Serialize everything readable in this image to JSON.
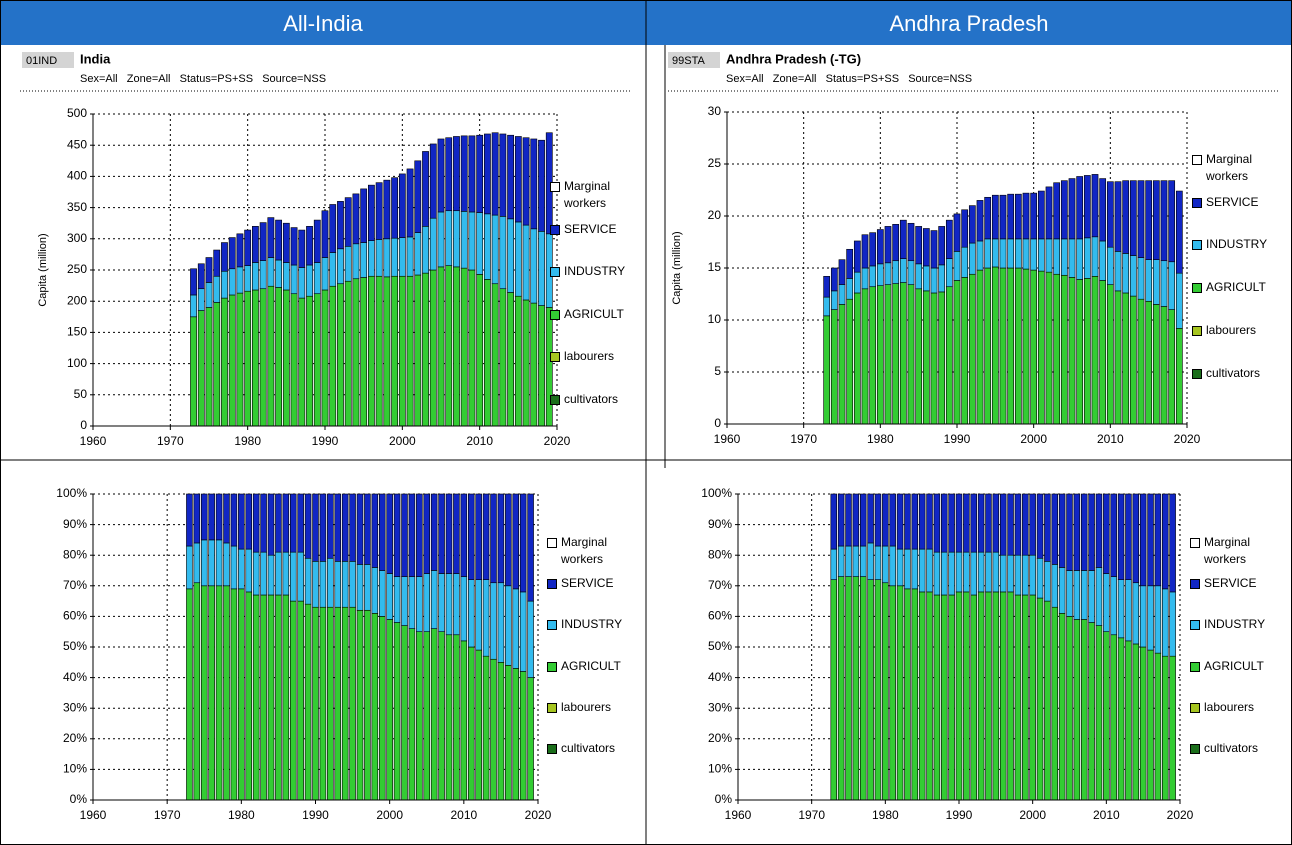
{
  "header": {
    "left": "All-India",
    "right": "Andhra Pradesh"
  },
  "chart_data": [
    {
      "type": "bar",
      "stacked": true,
      "code": "01IND",
      "title": "India",
      "subtitle": "Sex=All   Zone=All   Status=PS+SS   Source=NSS",
      "y_label": "Capita (million)",
      "x": [
        1973,
        1974,
        1975,
        1976,
        1977,
        1978,
        1979,
        1980,
        1981,
        1982,
        1983,
        1984,
        1985,
        1986,
        1987,
        1988,
        1989,
        1990,
        1991,
        1992,
        1993,
        1994,
        1995,
        1996,
        1997,
        1998,
        1999,
        2000,
        2001,
        2002,
        2003,
        2004,
        2005,
        2006,
        2007,
        2008,
        2009,
        2010,
        2011,
        2012,
        2013,
        2014,
        2015,
        2016,
        2017,
        2018,
        2019
      ],
      "xlim": [
        1960,
        2020
      ],
      "xticks": [
        1960,
        1970,
        1980,
        1990,
        2000,
        2010,
        2020
      ],
      "ylim": [
        0,
        500
      ],
      "yticks": [
        0,
        50,
        100,
        150,
        200,
        250,
        300,
        350,
        400,
        450,
        500
      ],
      "grid": true,
      "series": [
        {
          "name": "cultivators",
          "color": "#1b6e1b"
        },
        {
          "name": "labourers",
          "color": "#a6c520"
        },
        {
          "name": "AGRICULT",
          "color": "#33cc33",
          "values": [
            175,
            185,
            190,
            198,
            205,
            210,
            213,
            216,
            218,
            220,
            224,
            222,
            218,
            212,
            205,
            208,
            212,
            218,
            224,
            228,
            232,
            236,
            238,
            240,
            240,
            239,
            240,
            240,
            240,
            242,
            245,
            250,
            255,
            257,
            255,
            253,
            250,
            243,
            235,
            228,
            220,
            214,
            208,
            202,
            197,
            193,
            190
          ]
        },
        {
          "name": "INDUSTRY",
          "color": "#33bbee",
          "values": [
            35,
            35,
            40,
            42,
            43,
            42,
            42,
            41,
            44,
            45,
            46,
            44,
            44,
            46,
            49,
            50,
            50,
            52,
            54,
            56,
            56,
            56,
            56,
            57,
            59,
            61,
            61,
            62,
            63,
            68,
            75,
            83,
            88,
            88,
            90,
            91,
            93,
            99,
            105,
            110,
            116,
            118,
            119,
            120,
            119,
            119,
            118
          ]
        },
        {
          "name": "SERVICE",
          "color": "#1126c4",
          "values": [
            42,
            40,
            40,
            42,
            46,
            50,
            53,
            57,
            58,
            61,
            64,
            64,
            63,
            60,
            60,
            62,
            68,
            75,
            77,
            76,
            78,
            80,
            86,
            89,
            91,
            94,
            97,
            102,
            109,
            115,
            120,
            119,
            117,
            117,
            119,
            121,
            122,
            124,
            128,
            132,
            132,
            134,
            137,
            140,
            144,
            146,
            162
          ]
        },
        {
          "name": "Marginal workers",
          "color": "#ffffff"
        }
      ]
    },
    {
      "type": "bar",
      "stacked": true,
      "code": "99STA",
      "title": "Andhra Pradesh (-TG)",
      "subtitle": "Sex=All   Zone=All   Status=PS+SS   Source=NSS",
      "y_label": "Capita (million)",
      "x": [
        1973,
        1974,
        1975,
        1976,
        1977,
        1978,
        1979,
        1980,
        1981,
        1982,
        1983,
        1984,
        1985,
        1986,
        1987,
        1988,
        1989,
        1990,
        1991,
        1992,
        1993,
        1994,
        1995,
        1996,
        1997,
        1998,
        1999,
        2000,
        2001,
        2002,
        2003,
        2004,
        2005,
        2006,
        2007,
        2008,
        2009,
        2010,
        2011,
        2012,
        2013,
        2014,
        2015,
        2016,
        2017,
        2018,
        2019
      ],
      "xlim": [
        1960,
        2020
      ],
      "xticks": [
        1960,
        1970,
        1980,
        1990,
        2000,
        2010,
        2020
      ],
      "ylim": [
        0,
        30
      ],
      "yticks": [
        0,
        5,
        10,
        15,
        20,
        25,
        30
      ],
      "grid": true,
      "series": [
        {
          "name": "cultivators",
          "color": "#1b6e1b"
        },
        {
          "name": "labourers",
          "color": "#a6c520"
        },
        {
          "name": "AGRICULT",
          "color": "#33cc33",
          "values": [
            10.4,
            11,
            11.5,
            12,
            12.6,
            13,
            13.2,
            13.3,
            13.4,
            13.5,
            13.6,
            13.4,
            13,
            12.8,
            12.6,
            12.7,
            13.2,
            13.8,
            14.1,
            14.4,
            14.8,
            15,
            15.1,
            15,
            15,
            15,
            14.9,
            14.8,
            14.7,
            14.6,
            14.4,
            14.3,
            14.1,
            13.9,
            14,
            14.2,
            13.8,
            13.4,
            12.8,
            12.6,
            12.3,
            12,
            11.8,
            11.5,
            11.3,
            11,
            9.2
          ]
        },
        {
          "name": "INDUSTRY",
          "color": "#33bbee",
          "values": [
            1.8,
            1.8,
            1.9,
            2,
            2,
            2,
            2,
            2.1,
            2.1,
            2.2,
            2.3,
            2.3,
            2.4,
            2.4,
            2.4,
            2.6,
            2.7,
            2.8,
            2.9,
            3,
            2.8,
            2.8,
            2.7,
            2.8,
            2.8,
            2.8,
            2.9,
            3,
            3.1,
            3.2,
            3.4,
            3.5,
            3.7,
            3.9,
            3.9,
            3.8,
            3.8,
            3.6,
            3.8,
            3.8,
            3.9,
            4,
            4,
            4.3,
            4.4,
            4.6,
            5.3
          ]
        },
        {
          "name": "SERVICE",
          "color": "#1126c4",
          "values": [
            2,
            2.2,
            2.4,
            2.8,
            3,
            3.2,
            3.2,
            3.3,
            3.5,
            3.5,
            3.7,
            3.6,
            3.6,
            3.6,
            3.6,
            3.7,
            3.7,
            3.6,
            3.6,
            3.6,
            3.9,
            4,
            4.2,
            4.2,
            4.3,
            4.3,
            4.4,
            4.4,
            4.6,
            5,
            5.4,
            5.6,
            5.8,
            6,
            6,
            6,
            6,
            6.3,
            6.7,
            7,
            7.2,
            7.4,
            7.6,
            7.6,
            7.7,
            7.8,
            7.9
          ]
        },
        {
          "name": "Marginal workers",
          "color": "#ffffff"
        }
      ]
    },
    {
      "type": "bar",
      "stacked": true,
      "x": [
        1973,
        1974,
        1975,
        1976,
        1977,
        1978,
        1979,
        1980,
        1981,
        1982,
        1983,
        1984,
        1985,
        1986,
        1987,
        1988,
        1989,
        1990,
        1991,
        1992,
        1993,
        1994,
        1995,
        1996,
        1997,
        1998,
        1999,
        2000,
        2001,
        2002,
        2003,
        2004,
        2005,
        2006,
        2007,
        2008,
        2009,
        2010,
        2011,
        2012,
        2013,
        2014,
        2015,
        2016,
        2017,
        2018,
        2019
      ],
      "xlim": [
        1960,
        2020
      ],
      "xticks": [
        1960,
        1970,
        1980,
        1990,
        2000,
        2010,
        2020
      ],
      "ylim": [
        0,
        100
      ],
      "yticks": [
        {
          "value": 0,
          "label": "0%"
        },
        {
          "value": 10,
          "label": "10%"
        },
        {
          "value": 20,
          "label": "20%"
        },
        {
          "value": 30,
          "label": "30%"
        },
        {
          "value": 40,
          "label": "40%"
        },
        {
          "value": 50,
          "label": "50%"
        },
        {
          "value": 60,
          "label": "60%"
        },
        {
          "value": 70,
          "label": "70%"
        },
        {
          "value": 80,
          "label": "80%"
        },
        {
          "value": 90,
          "label": "90%"
        },
        {
          "value": 100,
          "label": "100%"
        }
      ],
      "grid": true,
      "series": [
        {
          "name": "cultivators",
          "color": "#1b6e1b"
        },
        {
          "name": "labourers",
          "color": "#a6c520"
        },
        {
          "name": "AGRICULT",
          "color": "#33cc33",
          "values": [
            69,
            71,
            70,
            70,
            70,
            70,
            69,
            69,
            68,
            67,
            67,
            67,
            67,
            67,
            65,
            65,
            64,
            63,
            63,
            63,
            63,
            63,
            63,
            62,
            62,
            61,
            60,
            59,
            58,
            57,
            56,
            55,
            55,
            56,
            55,
            54,
            54,
            52,
            50,
            49,
            47,
            46,
            45,
            44,
            43,
            42,
            40
          ]
        },
        {
          "name": "INDUSTRY",
          "color": "#33bbee",
          "values": [
            14,
            13,
            15,
            15,
            15,
            14,
            14,
            13,
            14,
            14,
            14,
            13,
            14,
            14,
            16,
            16,
            15,
            15,
            15,
            16,
            15,
            15,
            15,
            15,
            15,
            15,
            15,
            15,
            15,
            16,
            17,
            18,
            19,
            19,
            19,
            20,
            20,
            21,
            22,
            23,
            25,
            25,
            26,
            26,
            26,
            26,
            25
          ]
        },
        {
          "name": "SERVICE",
          "color": "#1126c4",
          "values": [
            17,
            16,
            15,
            15,
            15,
            16,
            17,
            18,
            18,
            19,
            19,
            20,
            19,
            19,
            19,
            19,
            21,
            22,
            22,
            21,
            22,
            22,
            22,
            23,
            23,
            24,
            25,
            26,
            27,
            27,
            27,
            27,
            26,
            25,
            26,
            26,
            26,
            27,
            28,
            28,
            28,
            29,
            29,
            30,
            31,
            32,
            35
          ]
        },
        {
          "name": "Marginal workers",
          "color": "#ffffff"
        }
      ]
    },
    {
      "type": "bar",
      "stacked": true,
      "x": [
        1973,
        1974,
        1975,
        1976,
        1977,
        1978,
        1979,
        1980,
        1981,
        1982,
        1983,
        1984,
        1985,
        1986,
        1987,
        1988,
        1989,
        1990,
        1991,
        1992,
        1993,
        1994,
        1995,
        1996,
        1997,
        1998,
        1999,
        2000,
        2001,
        2002,
        2003,
        2004,
        2005,
        2006,
        2007,
        2008,
        2009,
        2010,
        2011,
        2012,
        2013,
        2014,
        2015,
        2016,
        2017,
        2018,
        2019
      ],
      "xlim": [
        1960,
        2020
      ],
      "xticks": [
        1960,
        1970,
        1980,
        1990,
        2000,
        2010,
        2020
      ],
      "ylim": [
        0,
        100
      ],
      "yticks": [
        {
          "value": 0,
          "label": "0%"
        },
        {
          "value": 10,
          "label": "10%"
        },
        {
          "value": 20,
          "label": "20%"
        },
        {
          "value": 30,
          "label": "30%"
        },
        {
          "value": 40,
          "label": "40%"
        },
        {
          "value": 50,
          "label": "50%"
        },
        {
          "value": 60,
          "label": "60%"
        },
        {
          "value": 70,
          "label": "70%"
        },
        {
          "value": 80,
          "label": "80%"
        },
        {
          "value": 90,
          "label": "90%"
        },
        {
          "value": 100,
          "label": "100%"
        }
      ],
      "grid": true,
      "series": [
        {
          "name": "cultivators",
          "color": "#1b6e1b"
        },
        {
          "name": "labourers",
          "color": "#a6c520"
        },
        {
          "name": "AGRICULT",
          "color": "#33cc33",
          "values": [
            72,
            73,
            73,
            73,
            73,
            72,
            72,
            71,
            70,
            70,
            69,
            69,
            68,
            68,
            67,
            67,
            67,
            68,
            68,
            67,
            68,
            68,
            68,
            68,
            68,
            67,
            67,
            67,
            66,
            65,
            63,
            61,
            60,
            59,
            59,
            58,
            57,
            55,
            54,
            53,
            52,
            51,
            50,
            49,
            48,
            47,
            47
          ]
        },
        {
          "name": "INDUSTRY",
          "color": "#33bbee",
          "values": [
            10,
            10,
            10,
            10,
            10,
            12,
            11,
            12,
            13,
            12,
            13,
            13,
            14,
            14,
            14,
            14,
            14,
            13,
            13,
            14,
            13,
            13,
            13,
            12,
            12,
            13,
            13,
            13,
            13,
            13,
            14,
            15,
            15,
            16,
            16,
            17,
            19,
            19,
            19,
            19,
            20,
            20,
            20,
            21,
            22,
            22,
            21
          ]
        },
        {
          "name": "SERVICE",
          "color": "#1126c4",
          "values": [
            18,
            17,
            17,
            17,
            17,
            16,
            17,
            17,
            17,
            18,
            18,
            18,
            18,
            18,
            19,
            19,
            19,
            19,
            19,
            19,
            19,
            19,
            19,
            20,
            20,
            20,
            20,
            20,
            21,
            22,
            23,
            24,
            25,
            25,
            25,
            25,
            24,
            26,
            27,
            28,
            28,
            29,
            30,
            30,
            30,
            31,
            32
          ]
        },
        {
          "name": "Marginal workers",
          "color": "#ffffff"
        }
      ]
    }
  ]
}
